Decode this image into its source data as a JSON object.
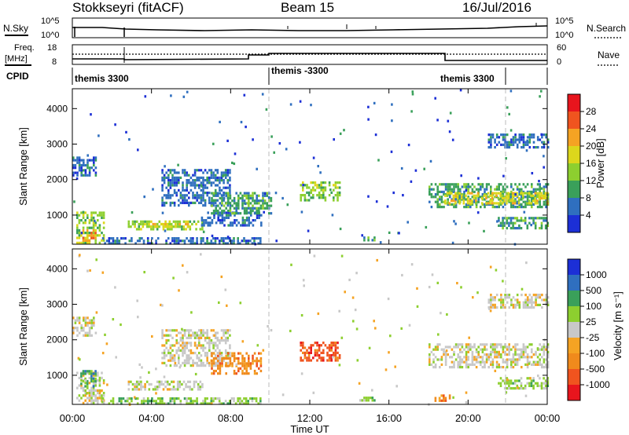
{
  "header": {
    "station": "Stokkseyri (fitACF)",
    "beam": "Beam 15",
    "date": "16/Jul/2016"
  },
  "strip_labels": {
    "nsky": "N.Sky",
    "nsky_ticks": [
      "10^5",
      "10^0"
    ],
    "nsearch": "N.Search",
    "nsearch_ticks": [
      "10^5",
      "10^0"
    ],
    "freq_line1": "Freq.",
    "freq_line2": "[MHz]",
    "freq_ticks": [
      "18",
      "8"
    ],
    "nave": "Nave",
    "nave_ticks": [
      "60",
      "0"
    ],
    "cpid": "CPID"
  },
  "cpid_segments": [
    {
      "label": "themis 3300",
      "start_h": 0,
      "end_h": 10
    },
    {
      "label": "themis -3300",
      "start_h": 10,
      "end_h": 22
    },
    {
      "label": "themis 3300",
      "start_h": 22,
      "end_h": 24
    }
  ],
  "time_axis": {
    "label": "Time UT",
    "ticks": [
      "00:00",
      "04:00",
      "08:00",
      "12:00",
      "16:00",
      "20:00",
      "00:00"
    ],
    "range_h": [
      0,
      24
    ]
  },
  "power_colorbar": {
    "label": "Power [dB]",
    "ticks": [
      "28",
      "24",
      "20",
      "16",
      "12",
      "8",
      "4"
    ],
    "colors": [
      "#e8151d",
      "#f0541f",
      "#f5a323",
      "#dcd71c",
      "#8dcf2f",
      "#3aa05a",
      "#2f6fbf",
      "#1c2fd6"
    ]
  },
  "velocity_colorbar": {
    "label": "Velocity [m s⁻¹]",
    "ticks": [
      "1000",
      "500",
      "100",
      "25",
      "-25",
      "-100",
      "-500",
      "-1000"
    ],
    "colors": [
      "#1c2fd6",
      "#2f6fbf",
      "#3aa05a",
      "#8dcf2f",
      "#c8c8c8",
      "#f5a323",
      "#f08a1c",
      "#f0541f",
      "#e8151d"
    ]
  },
  "chart_data": [
    {
      "type": "heatmap",
      "name": "power",
      "ylabel": "Slant Range [km]",
      "yticks": [
        "1000",
        "2000",
        "3000",
        "4000"
      ],
      "ylim": [
        180,
        4560
      ],
      "xlim": [
        0,
        24
      ],
      "x_unit": "hours UT",
      "regions": [
        {
          "t0": 0.0,
          "t1": 1.2,
          "r0": 2100,
          "r1": 2650,
          "level": 1
        },
        {
          "t0": 0.2,
          "t1": 1.6,
          "r0": 250,
          "r1": 1100,
          "level": 3
        },
        {
          "t0": 0.4,
          "t1": 1.2,
          "r0": 300,
          "r1": 600,
          "level": 5
        },
        {
          "t0": 1.5,
          "t1": 9.5,
          "r0": 220,
          "r1": 380,
          "level": 1
        },
        {
          "t0": 2.8,
          "t1": 6.6,
          "r0": 600,
          "r1": 850,
          "level": 3
        },
        {
          "t0": 3.0,
          "t1": 5.8,
          "r0": 690,
          "r1": 780,
          "level": 4
        },
        {
          "t0": 4.5,
          "t1": 8.0,
          "r0": 1300,
          "r1": 2300,
          "level": 1
        },
        {
          "t0": 6.5,
          "t1": 9.5,
          "r0": 700,
          "r1": 1100,
          "level": 1
        },
        {
          "t0": 7.0,
          "t1": 10.0,
          "r0": 1050,
          "r1": 1650,
          "level": 2
        },
        {
          "t0": 11.5,
          "t1": 13.5,
          "r0": 1400,
          "r1": 1950,
          "level": 3
        },
        {
          "t0": 14.5,
          "t1": 15.3,
          "r0": 260,
          "r1": 400,
          "level": 2
        },
        {
          "t0": 18.0,
          "t1": 24.0,
          "r0": 1200,
          "r1": 1900,
          "level": 2
        },
        {
          "t0": 18.8,
          "t1": 24.0,
          "r0": 1350,
          "r1": 1650,
          "level": 4
        },
        {
          "t0": 21.0,
          "t1": 24.0,
          "r0": 2900,
          "r1": 3300,
          "level": 1
        },
        {
          "t0": 21.5,
          "t1": 24.0,
          "r0": 600,
          "r1": 950,
          "level": 2
        }
      ]
    },
    {
      "type": "heatmap",
      "name": "velocity",
      "ylabel": "Slant Range [km]",
      "yticks": [
        "1000",
        "2000",
        "3000",
        "4000"
      ],
      "ylim": [
        180,
        4560
      ],
      "xlim": [
        0,
        24
      ],
      "x_unit": "hours UT",
      "regions": [
        {
          "t0": 0.0,
          "t1": 1.2,
          "r0": 2100,
          "r1": 2650,
          "level": 4
        },
        {
          "t0": 0.2,
          "t1": 1.6,
          "r0": 250,
          "r1": 1100,
          "level": 4
        },
        {
          "t0": 0.4,
          "t1": 1.2,
          "r0": 700,
          "r1": 1150,
          "level": 2
        },
        {
          "t0": 1.5,
          "t1": 9.5,
          "r0": 220,
          "r1": 380,
          "level": 3
        },
        {
          "t0": 2.8,
          "t1": 6.6,
          "r0": 600,
          "r1": 850,
          "level": 4
        },
        {
          "t0": 4.5,
          "t1": 8.0,
          "r0": 1300,
          "r1": 2300,
          "level": 4
        },
        {
          "t0": 7.0,
          "t1": 9.5,
          "r0": 1050,
          "r1": 1650,
          "level": 6
        },
        {
          "t0": 11.5,
          "t1": 13.5,
          "r0": 1400,
          "r1": 1950,
          "level": 7
        },
        {
          "t0": 14.5,
          "t1": 15.3,
          "r0": 260,
          "r1": 400,
          "level": 3
        },
        {
          "t0": 18.0,
          "t1": 24.0,
          "r0": 1200,
          "r1": 1900,
          "level": 4
        },
        {
          "t0": 18.3,
          "t1": 19.2,
          "r0": 270,
          "r1": 460,
          "level": 6
        },
        {
          "t0": 21.0,
          "t1": 24.0,
          "r0": 2900,
          "r1": 3300,
          "level": 4
        },
        {
          "t0": 21.5,
          "t1": 24.0,
          "r0": 600,
          "r1": 950,
          "level": 3
        }
      ]
    }
  ]
}
